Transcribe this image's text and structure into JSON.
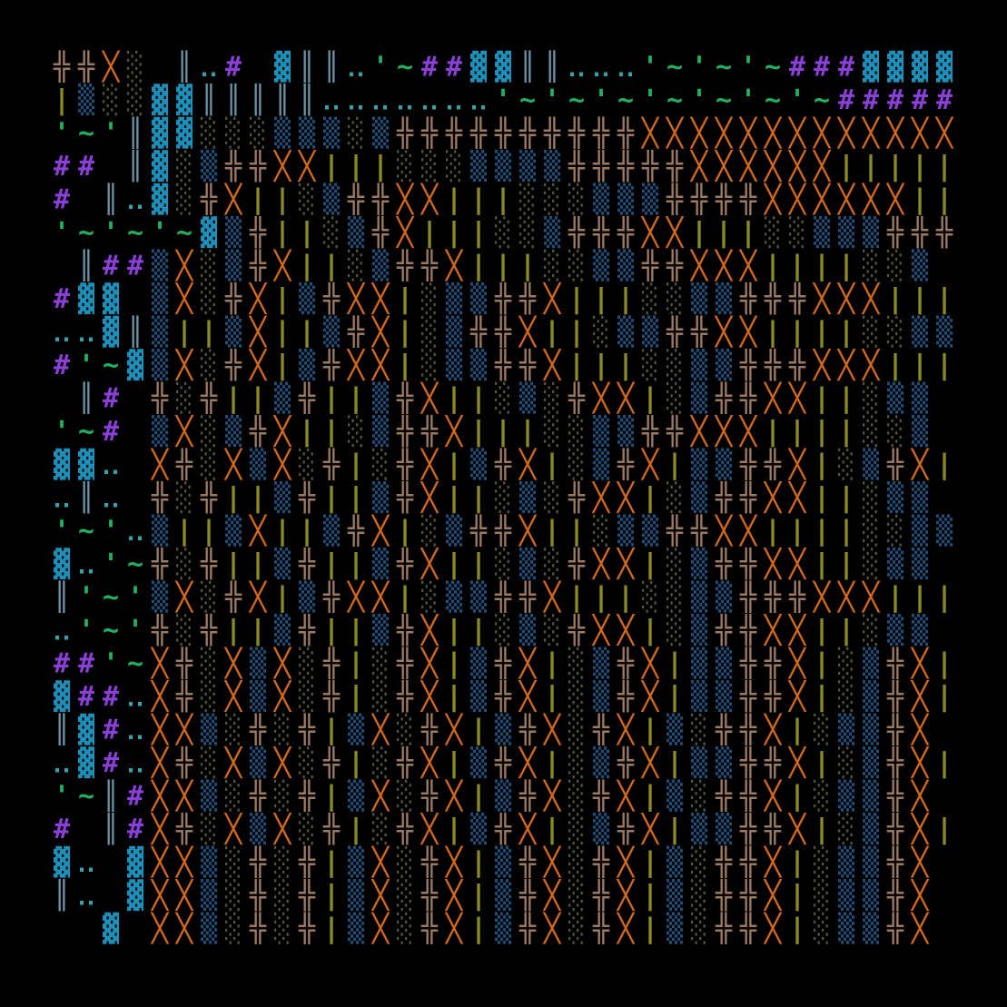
{
  "rows": [
    "╬╬╳░ ║‥# ▓║║‥'~##▓▓║║‥‥‥'~'~'~###▓▓▓▓",
    "|▒░░▓▓║║║║║‥‥‥‥‥‥‥'~'~'~'~'~'~'~#####",
    "'~'║▓▓░░░▒▒▒░▒╬╬╬╬╬╬╬╬╬╬╳╳╳╳╳╳╳╳╳╳╳╳╳",
    "## ║▓░▒╬╬╳╳|||░░░▒▒▒▒╬╬╬╬╬╳╳╳╳╳╳|||||",
    "# ║‥▓░╬╳||░▒╬╬╳╳|||░░░▒▒▒╬╬╬╬╳╳╳╳╳╳||",
    "'~'~'~▓▒╬||░▒╬╳|||░░▒╬╬╬╳╳|||░░▒▒▒╬╬╬",
    " ║##▒╳░▒╬╳||░▒╬╬╳|||░░▒▒╬╬╳╳╳||||░░▒",
    "#▓▓ ▒╳░╬╳|▒╬╳╳|░▒▒╬╬╳|||░░▒▒╬╬╬╳╳╳|||",
    "‥‥▓║▒||▒╳||▒╬╳|░▒╬╬╳||░▒▒╬╬╳╳||||░░▒▒",
    "#'~▓▒╳░╬╳|▒╬╳╳|░▒▒╬╬╳|||░░▒▒╬╬╬╳╳╳|||",
    " ║# ╬░╬||▒╬||▒╬╳||░▒░╬╳╳|░▒╬╬╳╳||░▒▒",
    "'~# ▒╳░▒╬╳||░▒╬╬╳|||░░▒▒╬╬╳╳╳||||░░▒",
    "▓▓‥ ╳╬░╳▒╳░╬|░╬╳|▒╬╳|░▒╬╳|▒▒╬╬╳|░▒╬╳|",
    "‥║‥ ╬░╬||▒╬||▒╬╳||░▒░╬╳╳|░▒╬╬╳╳||░▒▒",
    "'~'‥▒||▒╳||▒╬╳|░▒╬╬╳||░▒▒╬╬╳╳||||░░▒▒",
    "▓‥'~╬░╬||▒╬||▒╬╳||░▒░╬╳╳|░▒╬╬╳╳||░▒▒",
    "║'~'▒╳░╬╳|▒╬╳╳|░▒▒╬╬╳|||░░▒▒╬╬╬╳╳╳|||",
    "‥'~'╬░╬||▒╬||▒╬╳||░▒░╬╳╳|░▒╬╬╳╳||░▒▒",
    "##'~╳╬░╳▒╳░╬|░╬╳|▒╬╳|░▒╬╳|▒▒╬╬╳|░▒╬╳|",
    "▓##‥╳╬░╳▒╳░╬|░╬╳|▒╬╳|░▒╬╳|▒▒╬╬╳|░▒╬╳|",
    "║▓#‥╳╳▒░╬░╬|▒╳░╬╳|▒╬╳░╬╳|▒░╬╬╳|░▒▒╬╳",
    "‥▓#‥╳╬░╳▒╳░╬|░╬╳|▒╬╳|░▒╬╳|▒▒╬╬╳|░▒╬╳|",
    "'~║#╳╳▒░╬░╬|▒╳░╬╳|▒╬╳░╬╳|▒░╬╬╳|░▒▒╬╳",
    "# ║#╳╬░╳▒╳░╬|░╬╳|▒╬╳|░▒╬╳|▒▒╬╬╳|░▒╬╳|",
    "▓‥ ▓╳╳▒░╬░╬|▒╳░╬╳|▒╬╳░╬╳|▒░╬╬╳|░▒▒╬╳",
    "║‥ ▓╳╳▒░╬░╬|▒╳░╬╳|▒╬╳░╬╳|▒░╬╬╳|░▒▒╬╳",
    "  ▓ ╳╳▒░╬░╬|▒╳░╬╳|▒╬╳░╬╳|▒░╬╬╳|░▒▒╬╳"
  ],
  "palette": {
    "╬": "#9c7a62",
    "╳": "#d2691e",
    "▓": "#1e8fb8",
    "▒": "#1f4f78",
    "░": "#55553c",
    "|": "#8a8a22",
    "║": "#6a90a4",
    "#": "#8a3fd6",
    "‥": "#3aa0a8",
    "'": "#22b060",
    "~": "#22b060"
  }
}
